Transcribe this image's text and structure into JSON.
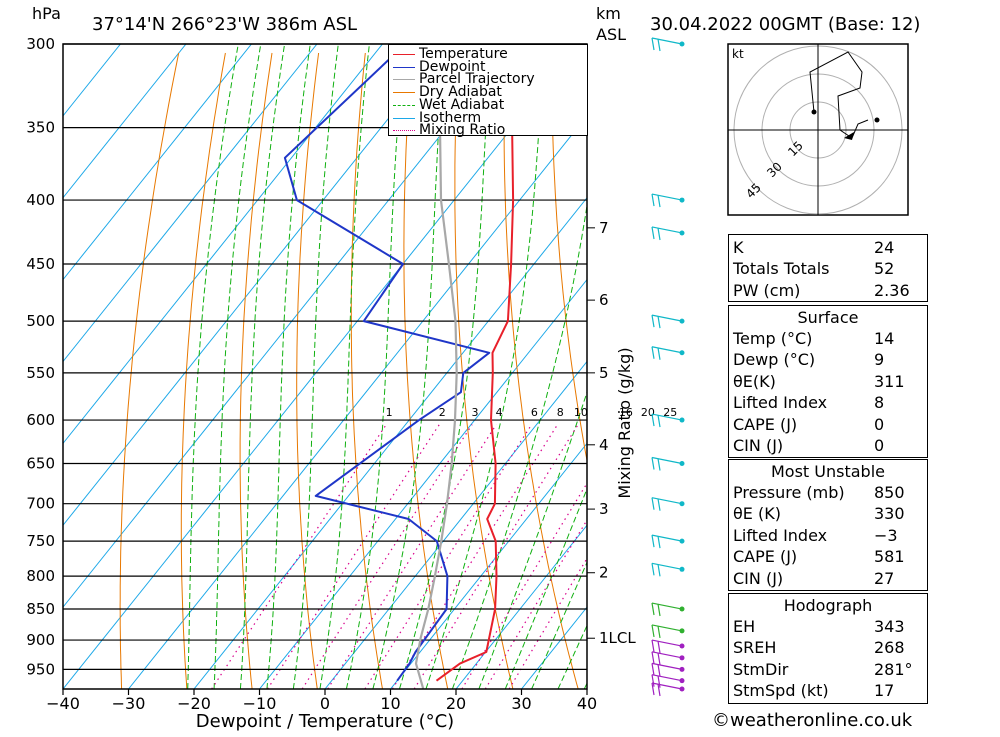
{
  "header": {
    "pressure_unit": "hPa",
    "location": "37°14'N 266°23'W 386m ASL",
    "km_label": "km",
    "asl_label": "ASL",
    "datetime": "30.04.2022 00GMT (Base: 12)"
  },
  "chart_data": {
    "type": "line",
    "subtype": "skew-T log-p sounding",
    "xlabel": "Dewpoint / Temperature (°C)",
    "ylabel_right": "Mixing Ratio (g/kg)",
    "x_ticks": [
      "−40",
      "−30",
      "−20",
      "−10",
      "0",
      "10",
      "20",
      "30",
      "40"
    ],
    "x_range": [
      -40,
      40
    ],
    "pressure_range": [
      300,
      985
    ],
    "pressure_ticks": [
      300,
      350,
      400,
      450,
      500,
      550,
      600,
      650,
      700,
      750,
      800,
      850,
      900,
      950
    ],
    "pressure_tick_labels": [
      "300",
      "350",
      "400",
      "450",
      "500",
      "550",
      "600",
      "650",
      "700",
      "750",
      "800",
      "850",
      "900",
      "950"
    ],
    "height_ticks": [
      {
        "label": "7",
        "p": 421
      },
      {
        "label": "6",
        "p": 481
      },
      {
        "label": "5",
        "p": 550
      },
      {
        "label": "4",
        "p": 628
      },
      {
        "label": "3",
        "p": 707
      },
      {
        "label": "2",
        "p": 795
      },
      {
        "label": "1LCL",
        "p": 897
      }
    ],
    "mixing_ratio_labels": [
      "1",
      "2",
      "3",
      "4",
      "6",
      "8",
      "10",
      "16",
      "20",
      "25"
    ],
    "mixing_ratio_values": [
      1,
      2,
      3,
      4,
      6,
      8,
      10,
      16,
      20,
      25
    ],
    "legend": {
      "position": "top-right of plot",
      "entries": [
        {
          "label": "Temperature",
          "color": "#e8202a",
          "style": "solid"
        },
        {
          "label": "Dewpoint",
          "color": "#1f36c8",
          "style": "solid"
        },
        {
          "label": "Parcel Trajectory",
          "color": "#a8a8a8",
          "style": "solid"
        },
        {
          "label": "Dry Adiabat",
          "color": "#e87800",
          "style": "solid"
        },
        {
          "label": "Wet Adiabat",
          "color": "#10b010",
          "style": "dashed"
        },
        {
          "label": "Isotherm",
          "color": "#1ca8e8",
          "style": "solid"
        },
        {
          "label": "Mixing Ratio",
          "color": "#d8008c",
          "style": "dotted"
        }
      ]
    },
    "series": [
      {
        "name": "Temperature",
        "color": "#e8202a",
        "points": [
          {
            "p": 970,
            "t": 16.0
          },
          {
            "p": 940,
            "t": 17.5
          },
          {
            "p": 920,
            "t": 20.1
          },
          {
            "p": 850,
            "t": 16.2
          },
          {
            "p": 800,
            "t": 12.4
          },
          {
            "p": 750,
            "t": 8.0
          },
          {
            "p": 720,
            "t": 4.0
          },
          {
            "p": 700,
            "t": 3.3
          },
          {
            "p": 650,
            "t": -1.5
          },
          {
            "p": 600,
            "t": -7.5
          },
          {
            "p": 550,
            "t": -13.0
          },
          {
            "p": 530,
            "t": -15.5
          },
          {
            "p": 500,
            "t": -17.0
          },
          {
            "p": 450,
            "t": -23.5
          },
          {
            "p": 400,
            "t": -31.0
          },
          {
            "p": 350,
            "t": -40.0
          },
          {
            "p": 300,
            "t": -51.5
          }
        ]
      },
      {
        "name": "Dewpoint",
        "color": "#1f36c8",
        "points": [
          {
            "p": 970,
            "t": 10.0
          },
          {
            "p": 940,
            "t": 9.8
          },
          {
            "p": 920,
            "t": 9.3
          },
          {
            "p": 850,
            "t": 8.8
          },
          {
            "p": 800,
            "t": 4.9
          },
          {
            "p": 750,
            "t": -1.0
          },
          {
            "p": 720,
            "t": -8.0
          },
          {
            "p": 690,
            "t": -25.0
          },
          {
            "p": 600,
            "t": -18.5
          },
          {
            "p": 570,
            "t": -15.5
          },
          {
            "p": 550,
            "t": -17.5
          },
          {
            "p": 530,
            "t": -16.0
          },
          {
            "p": 500,
            "t": -39.0
          },
          {
            "p": 450,
            "t": -40.0
          },
          {
            "p": 400,
            "t": -64.0
          },
          {
            "p": 370,
            "t": -71.0
          },
          {
            "p": 300,
            "t": -66.5
          }
        ]
      },
      {
        "name": "Parcel Trajectory",
        "color": "#a8a8a8",
        "points": [
          {
            "p": 985,
            "t": 15.0
          },
          {
            "p": 940,
            "t": 10.8
          },
          {
            "p": 897,
            "t": 8.4
          },
          {
            "p": 850,
            "t": 6.0
          },
          {
            "p": 800,
            "t": 3.0
          },
          {
            "p": 750,
            "t": -0.3
          },
          {
            "p": 700,
            "t": -4.0
          },
          {
            "p": 650,
            "t": -8.2
          },
          {
            "p": 600,
            "t": -13.0
          },
          {
            "p": 550,
            "t": -18.5
          },
          {
            "p": 500,
            "t": -25.0
          },
          {
            "p": 450,
            "t": -33.0
          },
          {
            "p": 400,
            "t": -42.0
          },
          {
            "p": 350,
            "t": -51.0
          },
          {
            "p": 310,
            "t": -60.0
          }
        ]
      }
    ],
    "wind_barb_pressures": [
      300,
      400,
      425,
      500,
      530,
      600,
      650,
      700,
      750,
      790,
      850,
      885,
      910,
      930,
      950,
      970,
      985
    ]
  },
  "hodograph": {
    "unit_label": "kt",
    "ring_labels": [
      "15",
      "30",
      "45"
    ]
  },
  "indices": {
    "rows1": [
      {
        "key": "K",
        "value": "24"
      },
      {
        "key": "Totals Totals",
        "value": "52"
      },
      {
        "key": "PW (cm)",
        "value": "2.36"
      }
    ],
    "surface_title": "Surface",
    "surface": [
      {
        "key": "Temp (°C)",
        "value": "14"
      },
      {
        "key": "Dewp (°C)",
        "value": "9"
      },
      {
        "key": "θE(K)",
        "value": "311"
      },
      {
        "key": "Lifted Index",
        "value": "8"
      },
      {
        "key": "CAPE (J)",
        "value": "0"
      },
      {
        "key": "CIN (J)",
        "value": "0"
      }
    ],
    "mu_title": "Most Unstable",
    "mu": [
      {
        "key": "Pressure (mb)",
        "value": "850"
      },
      {
        "key": "θE (K)",
        "value": "330"
      },
      {
        "key": "Lifted Index",
        "value": "−3"
      },
      {
        "key": "CAPE (J)",
        "value": "581"
      },
      {
        "key": "CIN (J)",
        "value": "27"
      }
    ],
    "hodo_title": "Hodograph",
    "hodo": [
      {
        "key": "EH",
        "value": "343"
      },
      {
        "key": "SREH",
        "value": "268"
      },
      {
        "key": "StmDir",
        "value": "281°"
      },
      {
        "key": "StmSpd (kt)",
        "value": "17"
      }
    ]
  },
  "footer": {
    "credit": "©weatheronline.co.uk"
  }
}
